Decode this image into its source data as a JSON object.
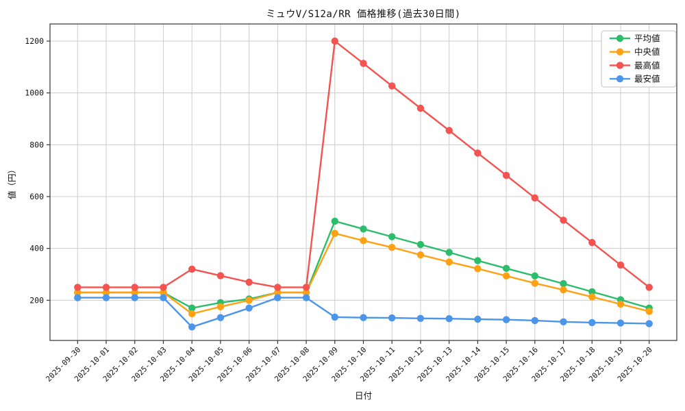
{
  "chart_data": {
    "type": "line",
    "title": "ミュウV/S12a/RR 価格推移(過去30日間)",
    "xlabel": "日付",
    "ylabel": "値（円）",
    "x": [
      "2025-09-30",
      "2025-10-01",
      "2025-10-02",
      "2025-10-03",
      "2025-10-04",
      "2025-10-05",
      "2025-10-06",
      "2025-10-07",
      "2025-10-08",
      "2025-10-09",
      "2025-10-10",
      "2025-10-11",
      "2025-10-12",
      "2025-10-13",
      "2025-10-14",
      "2025-10-15",
      "2025-10-16",
      "2025-10-17",
      "2025-10-18",
      "2025-10-19",
      "2025-10-20"
    ],
    "series": [
      {
        "name": "平均値",
        "key": "average",
        "color": "#2bbd6a",
        "values": [
          230,
          230,
          230,
          230,
          170,
          191,
          205,
          230,
          230,
          505,
          475,
          445,
          415,
          385,
          353,
          323,
          294,
          264,
          233,
          202,
          170
        ]
      },
      {
        "name": "中央値",
        "key": "median",
        "color": "#ffa113",
        "values": [
          230,
          230,
          230,
          230,
          148,
          175,
          200,
          230,
          230,
          458,
          430,
          404,
          375,
          348,
          322,
          294,
          266,
          240,
          213,
          185,
          157
        ]
      },
      {
        "name": "最高値",
        "key": "max",
        "color": "#f4534f",
        "values": [
          250,
          250,
          250,
          250,
          320,
          295,
          270,
          250,
          250,
          1200,
          1114,
          1027,
          941,
          855,
          768,
          682,
          595,
          509,
          423,
          336,
          250
        ]
      },
      {
        "name": "最安値",
        "key": "min",
        "color": "#4b95ea",
        "values": [
          210,
          210,
          210,
          210,
          97,
          133,
          170,
          210,
          210,
          135,
          133,
          132,
          130,
          129,
          127,
          125,
          122,
          117,
          114,
          112,
          110
        ]
      }
    ],
    "yticks": [
      200,
      400,
      600,
      800,
      1000,
      1200
    ],
    "ylim": [
      45,
      1266
    ],
    "grid": true,
    "grid_color": "#cccccc",
    "spine_color": "#333333",
    "legend_position": "upper right",
    "legend_border_color": "#cccccc",
    "background": "#ffffff"
  }
}
